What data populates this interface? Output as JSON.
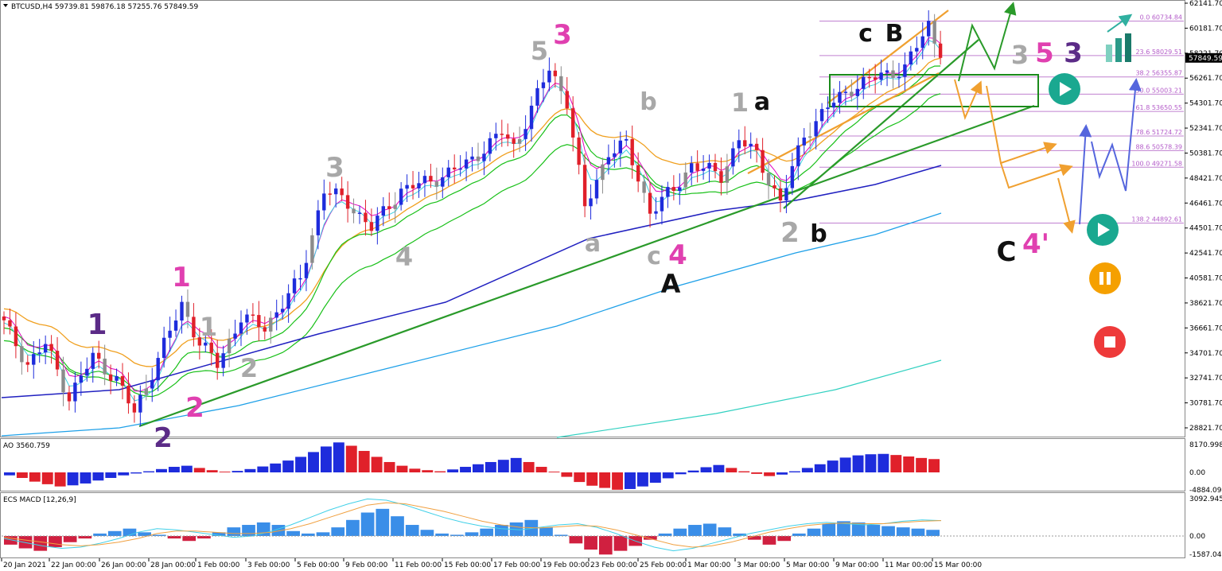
{
  "chart_data": {
    "type": "candlestick",
    "title": "BTCUSD,H4  59739.81 59876.18 57255.76 57849.59",
    "symbol": "BTCUSD,H4",
    "ohlc": {
      "open": 59739.81,
      "high": 59876.18,
      "low": 57255.76,
      "close": 57849.59
    },
    "price_axis": {
      "ticks": [
        "62141.70",
        "60181.70",
        "58221.70",
        "56261.70",
        "54301.70",
        "52341.70",
        "50381.70",
        "48421.70",
        "46461.70",
        "44501.70",
        "42541.70",
        "40581.70",
        "38621.70",
        "36661.70",
        "34701.70",
        "32741.70",
        "30781.70",
        "28821.70"
      ],
      "current": "57849.59"
    },
    "time_axis": [
      "20 Jan 2021",
      "22 Jan 00:00",
      "26 Jan 00:00",
      "28 Jan 00:00",
      "1 Feb 00:00",
      "3 Feb 00:00",
      "5 Feb 00:00",
      "9 Feb 00:00",
      "11 Feb 00:00",
      "15 Feb 00:00",
      "17 Feb 00:00",
      "19 Feb 00:00",
      "23 Feb 00:00",
      "25 Feb 00:00",
      "1 Mar 00:00",
      "3 Mar 00:00",
      "5 Mar 00:00",
      "9 Mar 00:00",
      "11 Mar 00:00",
      "15 Mar 00:00"
    ],
    "price_path": [
      [
        0,
        37000
      ],
      [
        4,
        33800
      ],
      [
        7,
        35400
      ],
      [
        11,
        31200
      ],
      [
        15,
        34400
      ],
      [
        19,
        32600
      ],
      [
        22,
        30000
      ],
      [
        25,
        33200
      ],
      [
        30,
        38500
      ],
      [
        33,
        35500
      ],
      [
        36,
        33800
      ],
      [
        40,
        37500
      ],
      [
        44,
        36700
      ],
      [
        50,
        40500
      ],
      [
        54,
        47500
      ],
      [
        58,
        46500
      ],
      [
        62,
        44500
      ],
      [
        67,
        47500
      ],
      [
        72,
        48200
      ],
      [
        78,
        49500
      ],
      [
        84,
        52000
      ],
      [
        86,
        50800
      ],
      [
        92,
        57000
      ],
      [
        95,
        54500
      ],
      [
        98,
        46000
      ],
      [
        102,
        50500
      ],
      [
        105,
        51000
      ],
      [
        109,
        45800
      ],
      [
        113,
        47500
      ],
      [
        116,
        49500
      ],
      [
        121,
        48600
      ],
      [
        124,
        51500
      ],
      [
        127,
        50200
      ],
      [
        131,
        46500
      ],
      [
        135,
        51800
      ],
      [
        139,
        54000
      ],
      [
        143,
        55500
      ],
      [
        148,
        56500
      ],
      [
        152,
        57000
      ],
      [
        156,
        60500
      ],
      [
        158,
        57850
      ]
    ],
    "fibonacci": [
      {
        "level": "0.0",
        "price": "60734.84"
      },
      {
        "level": "23.6",
        "price": "58029.51"
      },
      {
        "level": "38.2",
        "price": "56355.87"
      },
      {
        "level": "50.0",
        "price": "55003.21"
      },
      {
        "level": "61.8",
        "price": "53650.55"
      },
      {
        "level": "78.6",
        "price": "51724.72"
      },
      {
        "level": "88.6",
        "price": "50578.39"
      },
      {
        "level": "100.0",
        "price": "49271.58"
      },
      {
        "level": "138.2",
        "price": "44892.61"
      }
    ],
    "wave_labels": [
      {
        "text": "1",
        "color": "#5b2b87"
      },
      {
        "text": "2",
        "color": "#5b2b87"
      },
      {
        "text": "1",
        "color": "#e040b0"
      },
      {
        "text": "2",
        "color": "#e040b0"
      },
      {
        "text": "1",
        "color": "#a8a8a8"
      },
      {
        "text": "2",
        "color": "#a8a8a8"
      },
      {
        "text": "3",
        "color": "#a8a8a8"
      },
      {
        "text": "4",
        "color": "#a8a8a8"
      },
      {
        "text": "5",
        "color": "#a8a8a8"
      },
      {
        "text": "3",
        "color": "#e040b0"
      },
      {
        "text": "a",
        "color": "#a8a8a8"
      },
      {
        "text": "b",
        "color": "#a8a8a8"
      },
      {
        "text": "c",
        "color": "#a8a8a8"
      },
      {
        "text": "4",
        "color": "#e040b0"
      },
      {
        "text": "A",
        "color": "#111111"
      },
      {
        "text": "1",
        "color": "#a8a8a8"
      },
      {
        "text": "a",
        "color": "#111111"
      },
      {
        "text": "2",
        "color": "#a8a8a8"
      },
      {
        "text": "b",
        "color": "#111111"
      },
      {
        "text": "c",
        "color": "#111111"
      },
      {
        "text": "B",
        "color": "#111111"
      },
      {
        "text": "3",
        "color": "#a8a8a8"
      },
      {
        "text": "5",
        "color": "#e040b0"
      },
      {
        "text": "3",
        "color": "#5b2b87"
      },
      {
        "text": "C",
        "color": "#111111"
      },
      {
        "text": "4'",
        "color": "#e040b0"
      }
    ],
    "ao": {
      "label": "AO 3560.759",
      "ticks": [
        "8170.998",
        "0.00",
        "-4884.094"
      ],
      "values": [
        -800,
        -1500,
        -2500,
        -3200,
        -3800,
        -3500,
        -3000,
        -2200,
        -1500,
        -800,
        -300,
        300,
        900,
        1500,
        1800,
        1200,
        600,
        200,
        400,
        900,
        1600,
        2400,
        3200,
        4200,
        5500,
        7000,
        8100,
        7200,
        5800,
        4200,
        2800,
        1800,
        1000,
        600,
        300,
        800,
        1500,
        2200,
        2800,
        3400,
        3900,
        2800,
        1500,
        200,
        -1200,
        -2600,
        -3600,
        -4200,
        -4700,
        -4500,
        -3800,
        -2800,
        -1600,
        -500,
        500,
        1400,
        2000,
        1200,
        300,
        -400,
        -1000,
        -600,
        300,
        1200,
        2200,
        3200,
        4000,
        4600,
        4900,
        5000,
        4700,
        4300,
        3900,
        3600
      ]
    },
    "macd": {
      "label": "ECS MACD [12,26,9]",
      "ticks": [
        "3092.9451",
        "0.00",
        "-1587.0423"
      ],
      "histogram": [
        -700,
        -1000,
        -1200,
        -900,
        -500,
        -200,
        200,
        400,
        600,
        300,
        100,
        -200,
        -400,
        -200,
        300,
        700,
        900,
        1100,
        900,
        400,
        200,
        300,
        700,
        1300,
        1900,
        2200,
        1600,
        900,
        500,
        200,
        100,
        300,
        600,
        900,
        1100,
        1300,
        700,
        100,
        -600,
        -1100,
        -1500,
        -1200,
        -800,
        -300,
        200,
        600,
        900,
        1000,
        700,
        200,
        -300,
        -700,
        -400,
        200,
        600,
        1000,
        1200,
        1100,
        900,
        800,
        700,
        600,
        500
      ],
      "macd_line": [
        -200,
        -500,
        -800,
        -1000,
        -900,
        -600,
        -200,
        300,
        600,
        500,
        300,
        100,
        -100,
        0,
        400,
        900,
        1500,
        2100,
        2600,
        3000,
        2900,
        2500,
        2000,
        1500,
        1100,
        800,
        600,
        500,
        700,
        900,
        1000,
        700,
        200,
        -400,
        -900,
        -1200,
        -1000,
        -600,
        -200,
        200,
        500,
        800,
        1000,
        1100,
        1000,
        900,
        1000,
        1200,
        1300,
        1250
      ],
      "signal_line": [
        -100,
        -300,
        -500,
        -700,
        -800,
        -700,
        -500,
        -200,
        200,
        400,
        400,
        300,
        200,
        200,
        300,
        600,
        1000,
        1500,
        2000,
        2500,
        2700,
        2600,
        2300,
        2000,
        1600,
        1200,
        900,
        700,
        650,
        750,
        850,
        800,
        500,
        100,
        -300,
        -700,
        -900,
        -800,
        -500,
        -100,
        300,
        600,
        850,
        1000,
        1050,
        1000,
        1000,
        1100,
        1200,
        1250
      ]
    }
  },
  "legend_colors": {
    "bull": "#1e2cdc",
    "bear": "#e0202a",
    "neutral": "#8c8c8c",
    "ema_orange": "#f0a020",
    "ema_green": "#18c018",
    "ma_blue": "#2020c0",
    "ma_sky": "#1ea0e8",
    "ma_teal": "#30d0c0",
    "trend_green": "#2a9a2a",
    "channel_orange": "#f0a030",
    "zone_green": "#1a8a1a",
    "projection_blue": "#5566dd",
    "fib_purple": "#c080d0"
  },
  "icons": [
    "play-teal-icon",
    "play-teal-icon",
    "pause-orange-icon",
    "stop-red-icon",
    "bar-chart-logo-icon"
  ]
}
